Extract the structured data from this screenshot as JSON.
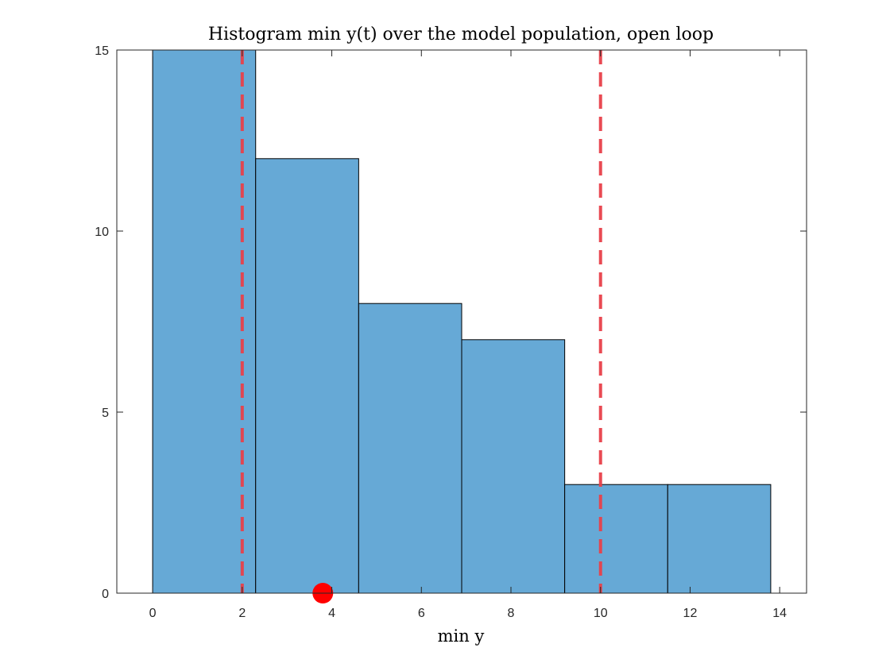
{
  "chart_data": {
    "type": "bar",
    "title": "Histogram min y(t) over the model population, open loop",
    "xlabel": "min y",
    "ylabel": "",
    "xlim": [
      -0.8,
      14.6
    ],
    "ylim": [
      0,
      15
    ],
    "xticks": [
      "0",
      "2",
      "4",
      "6",
      "8",
      "10",
      "12",
      "14"
    ],
    "yticks": [
      "0",
      "5",
      "10",
      "15"
    ],
    "bin_edges": [
      0,
      2.3,
      4.6,
      6.9,
      9.2,
      11.5,
      13.8
    ],
    "values": [
      15,
      12,
      8,
      7,
      3,
      3
    ],
    "reference_lines": [
      2,
      10
    ],
    "marker": {
      "x": 3.8,
      "y": 0
    },
    "grid": false,
    "colors": {
      "bar_fill": "#66a9d6",
      "bar_edge": "#000000",
      "reference_line": "#e8404a",
      "marker": "#ff0000"
    }
  }
}
